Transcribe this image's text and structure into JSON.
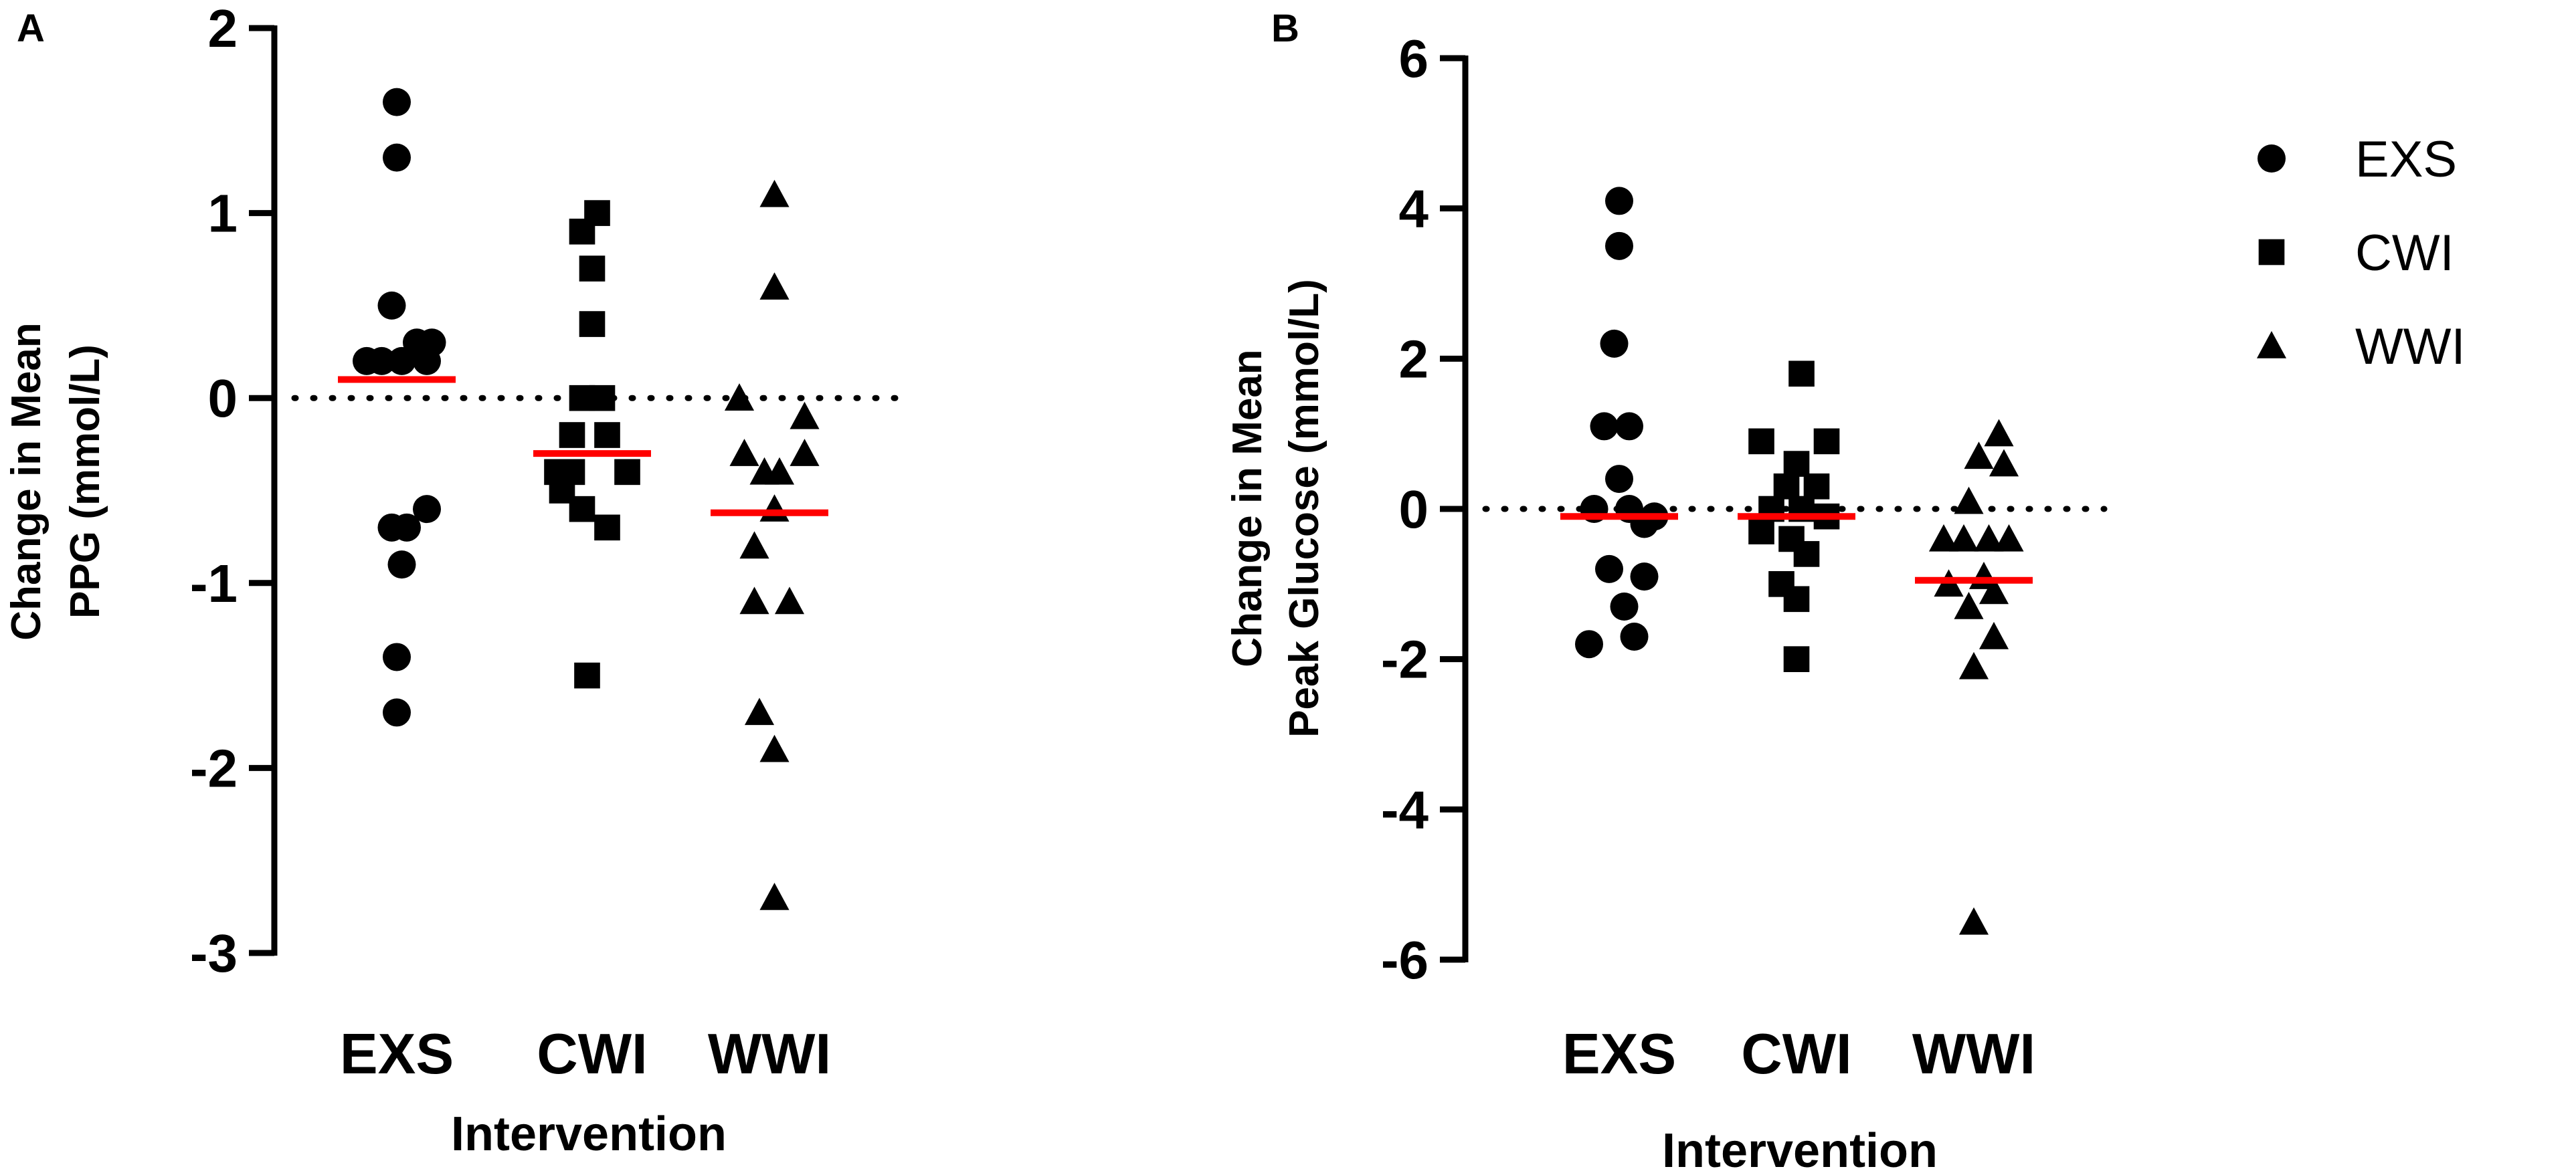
{
  "colors": {
    "points": "#000000",
    "mean": "#ff0000",
    "zero_line": "#000000",
    "axis": "#000000"
  },
  "chart_data": [
    {
      "type": "scatter",
      "panel_label": "A",
      "title": "",
      "xlabel": "Intervention",
      "ylabel": [
        "Change in Mean",
        "PPG (mmol/L)"
      ],
      "categories": [
        "EXS",
        "CWI",
        "WWI"
      ],
      "ylim": [
        -3,
        2
      ],
      "yticks": [
        -3,
        -2,
        -1,
        0,
        1,
        2
      ],
      "ytick_labels": [
        "-3",
        "-2",
        "-1",
        "0",
        "1",
        "2"
      ],
      "reference_line": 0,
      "series": [
        {
          "name": "EXS",
          "marker": "circle",
          "points": [
            [
              0,
              1.6
            ],
            [
              0,
              1.3
            ],
            [
              -0.05,
              0.5
            ],
            [
              -0.3,
              0.2
            ],
            [
              -0.15,
              0.2
            ],
            [
              0.05,
              0.2
            ],
            [
              0.2,
              0.3
            ],
            [
              0.35,
              0.3
            ],
            [
              0.3,
              0.2
            ],
            [
              0.3,
              -0.6
            ],
            [
              -0.05,
              -0.7
            ],
            [
              0.1,
              -0.7
            ],
            [
              0.05,
              -0.9
            ],
            [
              0,
              -1.4
            ],
            [
              0,
              -1.7
            ]
          ],
          "mean": 0.1
        },
        {
          "name": "CWI",
          "marker": "square",
          "points": [
            [
              0.05,
              1.0
            ],
            [
              -0.1,
              0.9
            ],
            [
              0,
              0.7
            ],
            [
              0,
              0.4
            ],
            [
              -0.1,
              0.0
            ],
            [
              0.1,
              0.0
            ],
            [
              -0.2,
              -0.2
            ],
            [
              0.15,
              -0.2
            ],
            [
              -0.35,
              -0.4
            ],
            [
              -0.2,
              -0.4
            ],
            [
              0.35,
              -0.4
            ],
            [
              -0.3,
              -0.5
            ],
            [
              -0.1,
              -0.6
            ],
            [
              0.15,
              -0.7
            ],
            [
              -0.05,
              -1.5
            ]
          ],
          "mean": -0.3
        },
        {
          "name": "WWI",
          "marker": "triangle",
          "points": [
            [
              0.05,
              1.1
            ],
            [
              0.05,
              0.6
            ],
            [
              -0.3,
              0.0
            ],
            [
              0.35,
              -0.1
            ],
            [
              -0.25,
              -0.3
            ],
            [
              0.35,
              -0.3
            ],
            [
              -0.05,
              -0.4
            ],
            [
              0.1,
              -0.4
            ],
            [
              0.05,
              -0.6
            ],
            [
              -0.15,
              -0.8
            ],
            [
              -0.15,
              -1.1
            ],
            [
              0.2,
              -1.1
            ],
            [
              -0.1,
              -1.7
            ],
            [
              0.05,
              -1.9
            ],
            [
              0.05,
              -2.7
            ]
          ],
          "mean": -0.62
        }
      ]
    },
    {
      "type": "scatter",
      "panel_label": "B",
      "title": "",
      "xlabel": "Intervention",
      "ylabel": [
        "Change in Mean",
        "Peak Glucose (mmol/L)"
      ],
      "categories": [
        "EXS",
        "CWI",
        "WWI"
      ],
      "ylim": [
        -6,
        6
      ],
      "yticks": [
        -6,
        -4,
        -2,
        0,
        2,
        4,
        6
      ],
      "ytick_labels": [
        "-6",
        "-4",
        "-2",
        "0",
        "2",
        "4",
        "6"
      ],
      "reference_line": 0,
      "series": [
        {
          "name": "EXS",
          "marker": "circle",
          "points": [
            [
              0,
              4.1
            ],
            [
              0,
              3.5
            ],
            [
              -0.05,
              2.2
            ],
            [
              -0.15,
              1.1
            ],
            [
              0.1,
              1.1
            ],
            [
              0,
              0.4
            ],
            [
              -0.25,
              0.0
            ],
            [
              0.1,
              0.0
            ],
            [
              0.35,
              -0.1
            ],
            [
              0.25,
              -0.2
            ],
            [
              -0.1,
              -0.8
            ],
            [
              0.25,
              -0.9
            ],
            [
              0.05,
              -1.3
            ],
            [
              -0.3,
              -1.8
            ],
            [
              0.15,
              -1.7
            ]
          ],
          "mean": -0.1
        },
        {
          "name": "CWI",
          "marker": "square",
          "points": [
            [
              0.05,
              1.8
            ],
            [
              -0.35,
              0.9
            ],
            [
              0.3,
              0.9
            ],
            [
              0,
              0.6
            ],
            [
              -0.1,
              0.3
            ],
            [
              0.2,
              0.3
            ],
            [
              -0.25,
              0.0
            ],
            [
              0.05,
              0.0
            ],
            [
              0.3,
              -0.1
            ],
            [
              -0.35,
              -0.3
            ],
            [
              -0.05,
              -0.4
            ],
            [
              0.1,
              -0.6
            ],
            [
              -0.15,
              -1.0
            ],
            [
              0,
              -1.2
            ],
            [
              0,
              -2.0
            ]
          ],
          "mean": -0.1
        },
        {
          "name": "WWI",
          "marker": "triangle",
          "points": [
            [
              0.25,
              1.0
            ],
            [
              0.05,
              0.7
            ],
            [
              0.3,
              0.6
            ],
            [
              -0.05,
              0.1
            ],
            [
              -0.3,
              -0.4
            ],
            [
              -0.1,
              -0.4
            ],
            [
              0.15,
              -0.4
            ],
            [
              0.35,
              -0.4
            ],
            [
              0.1,
              -0.9
            ],
            [
              -0.25,
              -1.0
            ],
            [
              0.2,
              -1.1
            ],
            [
              -0.05,
              -1.3
            ],
            [
              0.2,
              -1.7
            ],
            [
              0,
              -2.1
            ],
            [
              0,
              -5.5
            ]
          ],
          "mean": -0.95
        }
      ]
    }
  ],
  "legend": {
    "placement": "top-right",
    "items": [
      {
        "label": "EXS",
        "marker": "circle"
      },
      {
        "label": "CWI",
        "marker": "square"
      },
      {
        "label": "WWI",
        "marker": "triangle"
      }
    ]
  }
}
